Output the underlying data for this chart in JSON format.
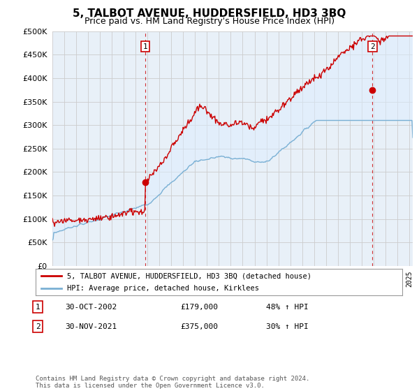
{
  "title": "5, TALBOT AVENUE, HUDDERSFIELD, HD3 3BQ",
  "subtitle": "Price paid vs. HM Land Registry's House Price Index (HPI)",
  "ylim": [
    0,
    500000
  ],
  "yticks": [
    0,
    50000,
    100000,
    150000,
    200000,
    250000,
    300000,
    350000,
    400000,
    450000,
    500000
  ],
  "xlim_start": 1995.0,
  "xlim_end": 2025.3,
  "sale1_date": 2002.83,
  "sale1_price": 179000,
  "sale1_label": "1",
  "sale2_date": 2021.92,
  "sale2_price": 375000,
  "sale2_label": "2",
  "legend_line1": "5, TALBOT AVENUE, HUDDERSFIELD, HD3 3BQ (detached house)",
  "legend_line2": "HPI: Average price, detached house, Kirklees",
  "footer": "Contains HM Land Registry data © Crown copyright and database right 2024.\nThis data is licensed under the Open Government Licence v3.0.",
  "property_color": "#cc0000",
  "hpi_color": "#7ab0d4",
  "fill_color": "#ddeeff",
  "marker_box_color": "#cc0000",
  "vline_color": "#cc0000",
  "background_color": "#ffffff",
  "plot_bg_color": "#e8f0f8",
  "grid_color": "#cccccc"
}
